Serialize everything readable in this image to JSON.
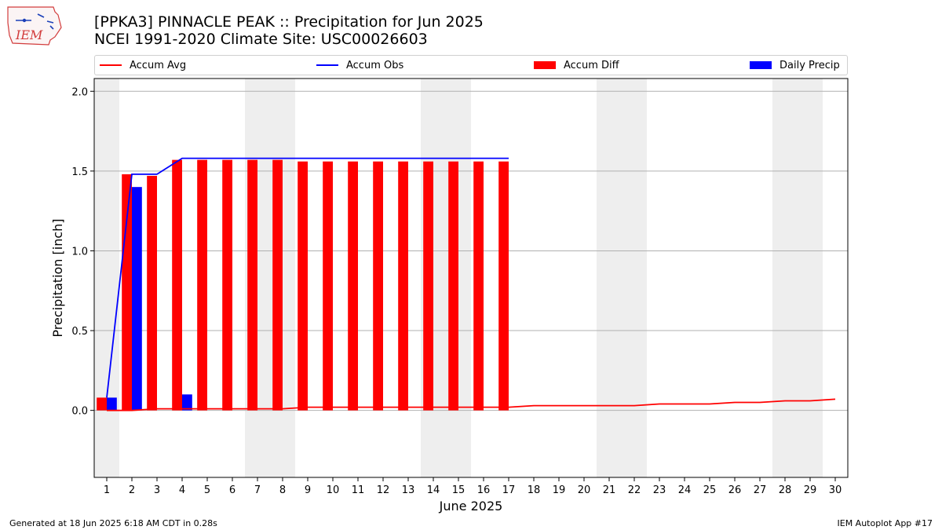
{
  "header": {
    "title_line1": "[PPKA3] PINNACLE PEAK :: Precipitation for Jun 2025",
    "title_line2": "NCEI 1991-2020 Climate Site: USC00026603",
    "logo_text": "IEM"
  },
  "legend": {
    "accum_avg": "Accum Avg",
    "accum_obs": "Accum Obs",
    "accum_diff": "Accum Diff",
    "daily_precip": "Daily Precip"
  },
  "colors": {
    "avg": "#ff0000",
    "obs": "#0000ff",
    "diff": "#ff0000",
    "daily": "#0000ff",
    "weekend_shade": "#eeeeee",
    "grid": "#b0b0b0"
  },
  "footer": {
    "left": "Generated at 18 Jun 2025 6:18 AM CDT in 0.28s",
    "right": "IEM Autoplot App #17"
  },
  "chart_data": {
    "type": "bar",
    "xlabel": "June 2025",
    "ylabel": "Precipitation [inch]",
    "xlim": [
      0.5,
      30.5
    ],
    "ylim": [
      -0.42,
      2.08
    ],
    "yticks": [
      0.0,
      0.5,
      1.0,
      1.5,
      2.0
    ],
    "ytick_labels": [
      "0.0",
      "0.5",
      "1.0",
      "1.5",
      "2.0"
    ],
    "days": [
      1,
      2,
      3,
      4,
      5,
      6,
      7,
      8,
      9,
      10,
      11,
      12,
      13,
      14,
      15,
      16,
      17,
      18,
      19,
      20,
      21,
      22,
      23,
      24,
      25,
      26,
      27,
      28,
      29,
      30
    ],
    "weekend_days": [
      1,
      7,
      8,
      14,
      15,
      21,
      22,
      28,
      29
    ],
    "grid": "horizontal",
    "legend_position": "top",
    "series": [
      {
        "name": "Accum Avg",
        "kind": "line",
        "x": [
          1,
          2,
          3,
          4,
          5,
          6,
          7,
          8,
          9,
          10,
          11,
          12,
          13,
          14,
          15,
          16,
          17,
          18,
          19,
          20,
          21,
          22,
          23,
          24,
          25,
          26,
          27,
          28,
          29,
          30
        ],
        "values": [
          0.0,
          0.0,
          0.01,
          0.01,
          0.01,
          0.01,
          0.01,
          0.01,
          0.02,
          0.02,
          0.02,
          0.02,
          0.02,
          0.02,
          0.02,
          0.02,
          0.02,
          0.03,
          0.03,
          0.03,
          0.03,
          0.03,
          0.04,
          0.04,
          0.04,
          0.05,
          0.05,
          0.06,
          0.06,
          0.07
        ]
      },
      {
        "name": "Accum Obs",
        "kind": "line",
        "x": [
          1,
          2,
          3,
          4,
          5,
          6,
          7,
          8,
          9,
          10,
          11,
          12,
          13,
          14,
          15,
          16,
          17
        ],
        "values": [
          0.08,
          1.48,
          1.48,
          1.58,
          1.58,
          1.58,
          1.58,
          1.58,
          1.58,
          1.58,
          1.58,
          1.58,
          1.58,
          1.58,
          1.58,
          1.58,
          1.58
        ]
      },
      {
        "name": "Accum Diff",
        "kind": "bar",
        "x": [
          1,
          2,
          3,
          4,
          5,
          6,
          7,
          8,
          9,
          10,
          11,
          12,
          13,
          14,
          15,
          16,
          17
        ],
        "values": [
          0.08,
          1.48,
          1.47,
          1.57,
          1.57,
          1.57,
          1.57,
          1.57,
          1.56,
          1.56,
          1.56,
          1.56,
          1.56,
          1.56,
          1.56,
          1.56,
          1.56
        ]
      },
      {
        "name": "Daily Precip",
        "kind": "bar",
        "x": [
          1,
          2,
          4
        ],
        "values": [
          0.08,
          1.4,
          0.1
        ]
      }
    ]
  }
}
